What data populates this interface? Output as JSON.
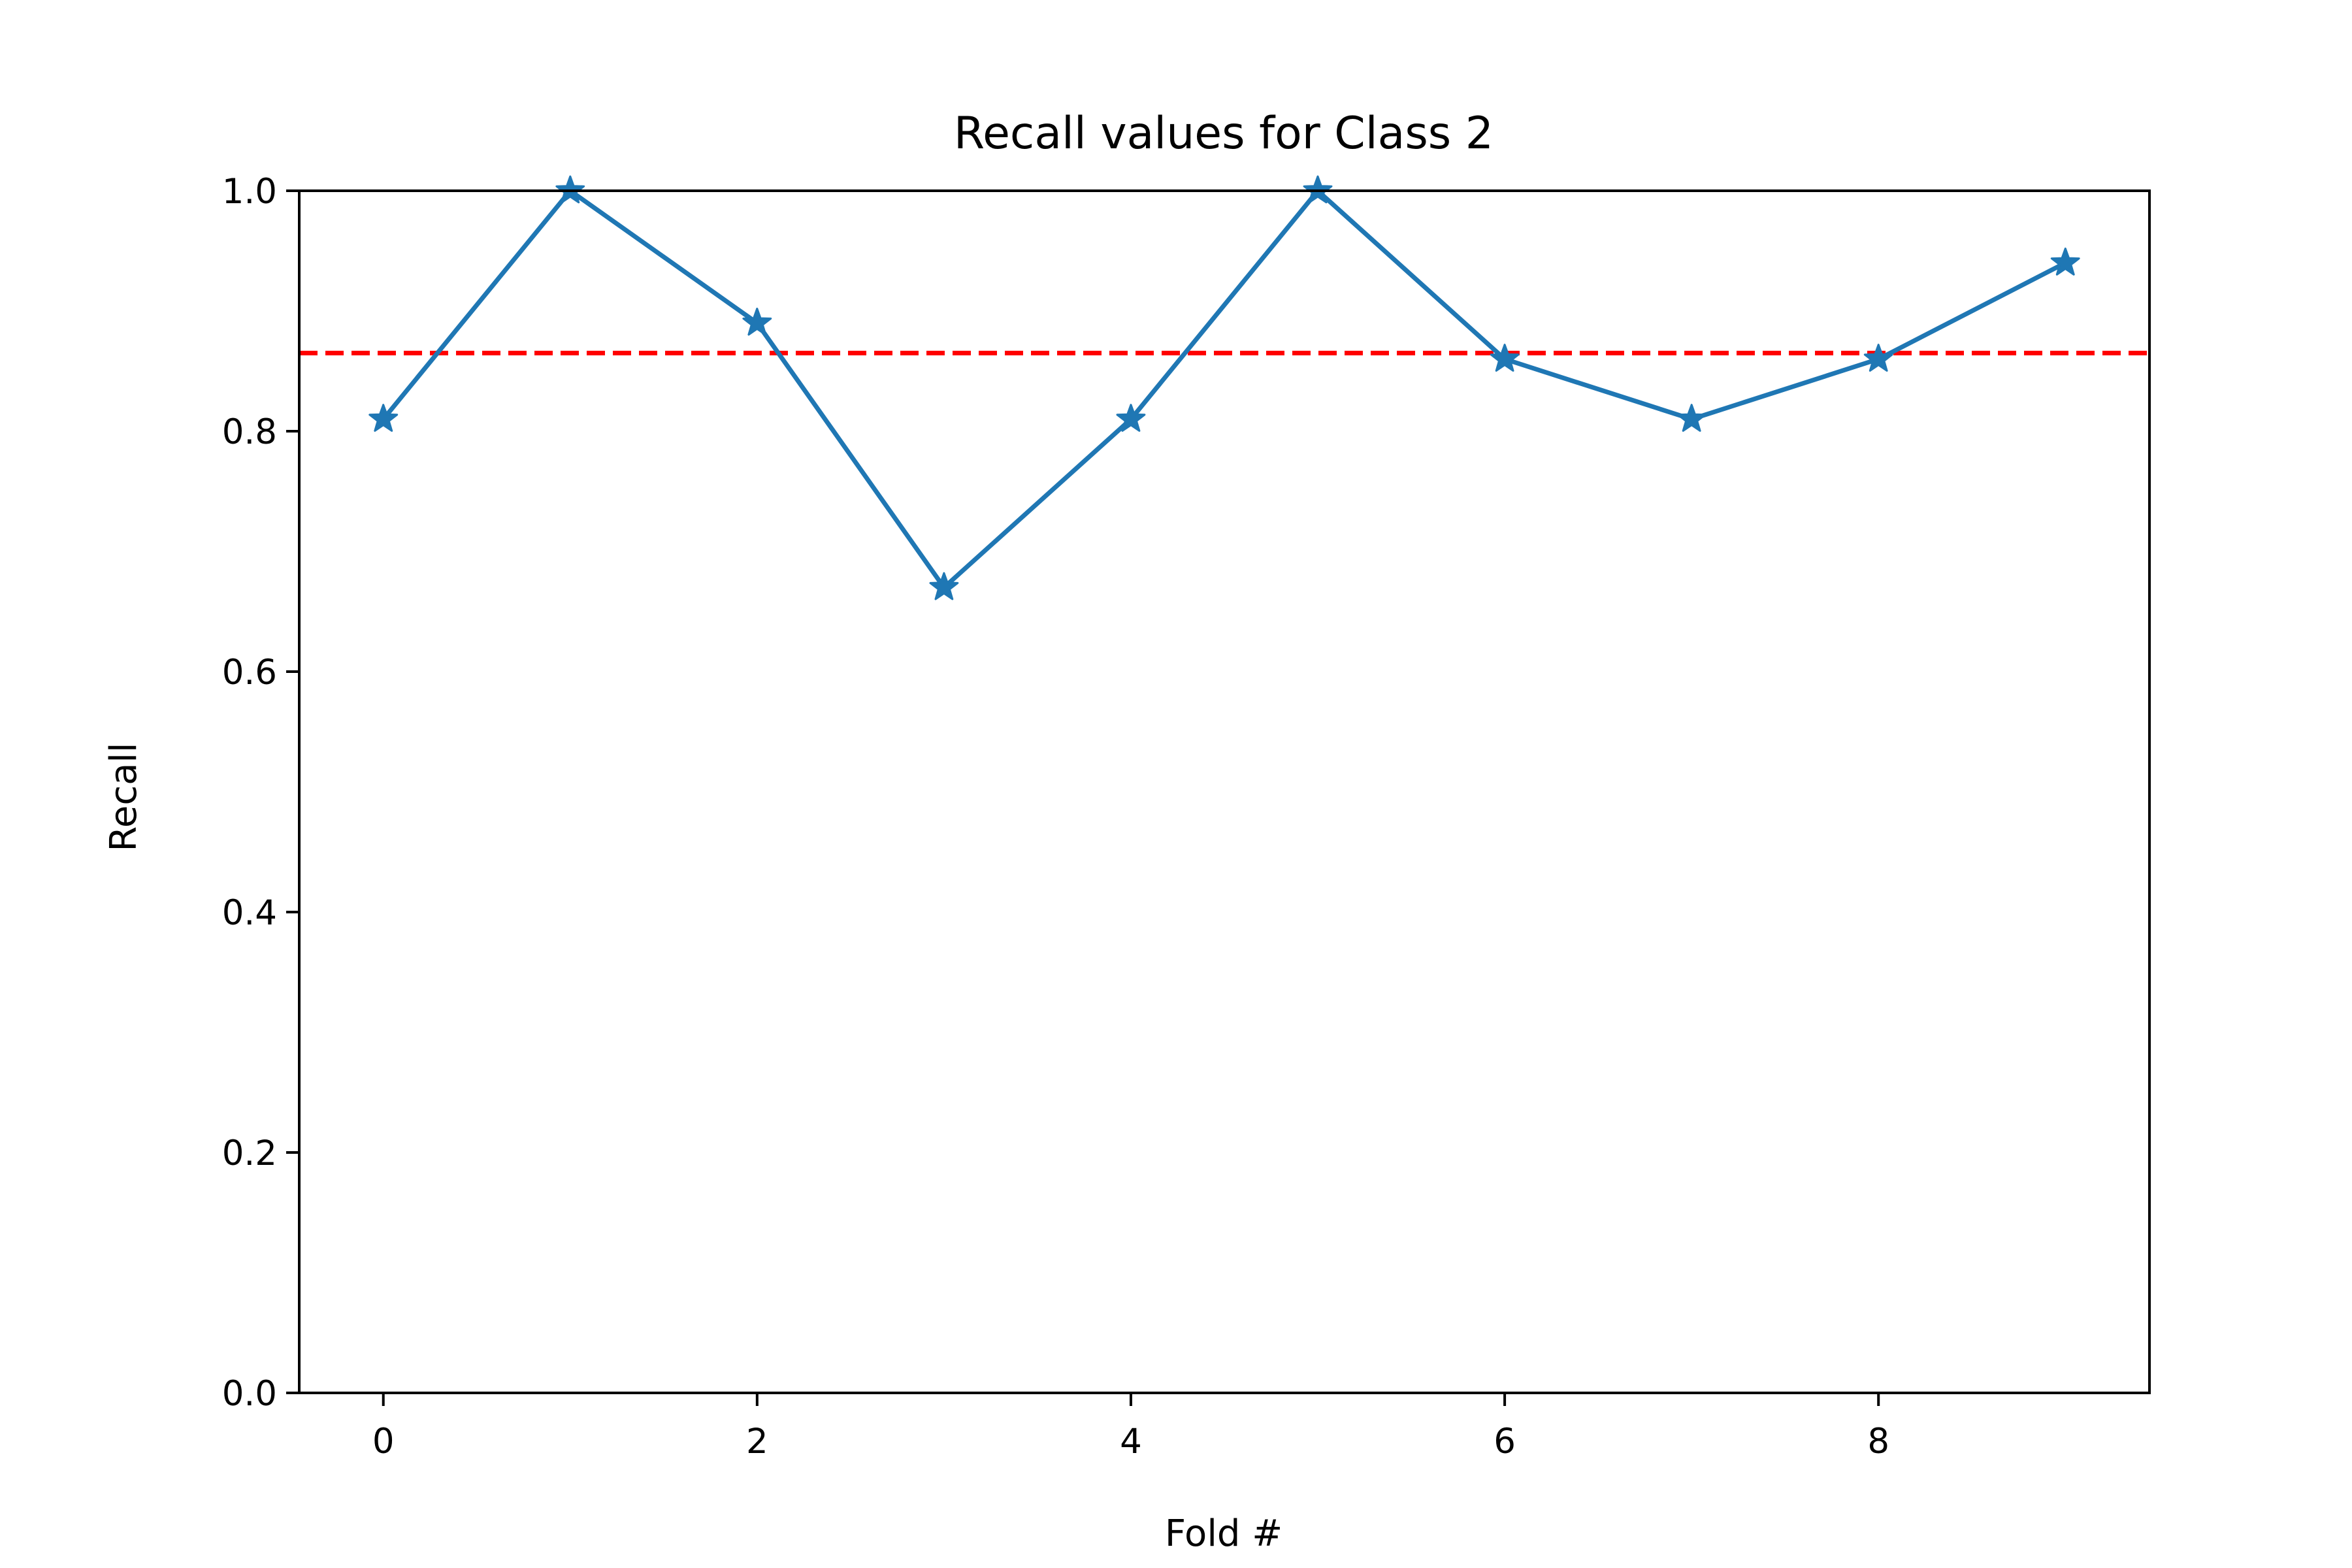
{
  "chart_data": {
    "type": "line",
    "title": "Recall values for Class 2",
    "xlabel": "Fold #",
    "ylabel": "Recall",
    "xlim": [
      -0.45,
      9.45
    ],
    "ylim": [
      0.0,
      1.0
    ],
    "x_ticks": [
      0,
      2,
      4,
      6,
      8
    ],
    "x_tick_labels": [
      "0",
      "2",
      "4",
      "6",
      "8"
    ],
    "y_ticks": [
      0.0,
      0.2,
      0.4,
      0.6,
      0.8,
      1.0
    ],
    "y_tick_labels": [
      "0.0",
      "0.2",
      "0.4",
      "0.6",
      "0.8",
      "1.0"
    ],
    "grid": false,
    "series": [
      {
        "x": [
          0,
          1,
          2,
          3,
          4,
          5,
          6,
          7,
          8,
          9
        ],
        "values": [
          0.81,
          1.0,
          0.89,
          0.67,
          0.81,
          1.0,
          0.86,
          0.81,
          0.86,
          0.94
        ],
        "color": "#1f77b4",
        "marker": "star",
        "line_style": "solid"
      }
    ],
    "reference_line": {
      "value": 0.865,
      "color": "#ff0000",
      "line_style": "dashed"
    }
  }
}
